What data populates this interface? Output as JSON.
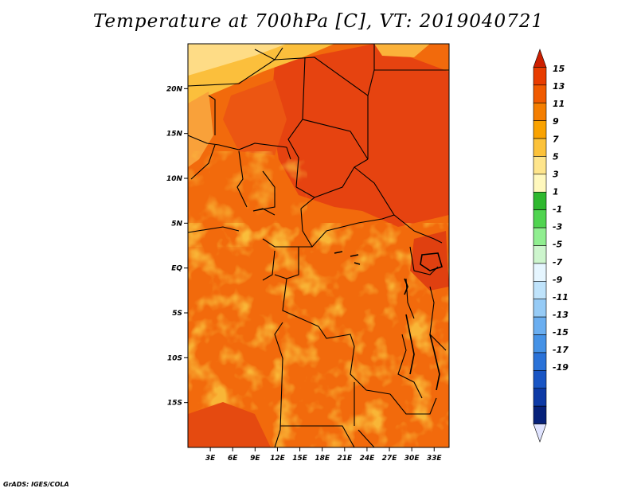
{
  "title": "Temperature at 700hPa [C], VT: 2019040721",
  "credit": "GrADS: IGES/COLA",
  "map": {
    "lat_range": [
      -20,
      25
    ],
    "lon_range": [
      0,
      35
    ],
    "lat_ticks": [
      {
        "label": "20N",
        "value": 20
      },
      {
        "label": "15N",
        "value": 15
      },
      {
        "label": "10N",
        "value": 10
      },
      {
        "label": "5N",
        "value": 5
      },
      {
        "label": "EQ",
        "value": 0
      },
      {
        "label": "5S",
        "value": -5
      },
      {
        "label": "10S",
        "value": -10
      },
      {
        "label": "15S",
        "value": -15
      }
    ],
    "lon_ticks": [
      {
        "label": "3E",
        "value": 3
      },
      {
        "label": "6E",
        "value": 6
      },
      {
        "label": "9E",
        "value": 9
      },
      {
        "label": "12E",
        "value": 12
      },
      {
        "label": "15E",
        "value": 15
      },
      {
        "label": "18E",
        "value": 18
      },
      {
        "label": "21E",
        "value": 21
      },
      {
        "label": "24E",
        "value": 24
      },
      {
        "label": "27E",
        "value": 27
      },
      {
        "label": "30E",
        "value": 30
      },
      {
        "label": "33E",
        "value": 33
      }
    ]
  },
  "colorbar": {
    "labels": [
      "15",
      "13",
      "11",
      "9",
      "7",
      "5",
      "3",
      "1",
      "-1",
      "-3",
      "-5",
      "-7",
      "-9",
      "-11",
      "-13",
      "-15",
      "-17",
      "-19"
    ],
    "colors": [
      "#cc1f00",
      "#e83c00",
      "#f05a00",
      "#f47e00",
      "#f9a200",
      "#fcc23a",
      "#fee58c",
      "#fff8bd",
      "#2eb82e",
      "#50d450",
      "#90ee90",
      "#cdf5cd",
      "#e6f6ff",
      "#bfe3fb",
      "#96cbf6",
      "#6aaef0",
      "#4592e6",
      "#2a72d8",
      "#1955c4",
      "#0d3aa6",
      "#06217a",
      "#e0e4ff"
    ]
  }
}
